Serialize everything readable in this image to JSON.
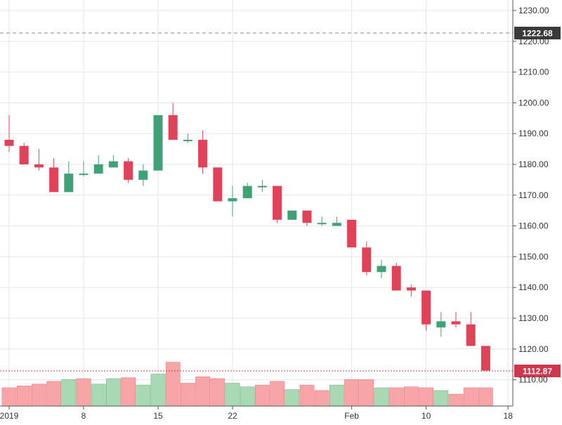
{
  "chart_data": {
    "type": "candlestick",
    "title": "",
    "xlabel": "",
    "ylabel": "",
    "ylim": [
      1105,
      1232
    ],
    "grid": true,
    "x_ticks": [
      {
        "label": "2019",
        "index": 0
      },
      {
        "label": "8",
        "index": 5
      },
      {
        "label": "15",
        "index": 10
      },
      {
        "label": "22",
        "index": 15
      },
      {
        "label": "Feb",
        "index": 23
      },
      {
        "label": "10",
        "index": 28
      },
      {
        "label": "18",
        "index": 33.5
      }
    ],
    "y_ticks": [
      1110,
      1120,
      1130,
      1140,
      1150,
      1160,
      1170,
      1180,
      1190,
      1200,
      1210,
      1220,
      1230
    ],
    "reference_lines": [
      {
        "value": 1222.68,
        "label": "1222.68",
        "style": "dashed",
        "color": "#888888",
        "label_bg": "#3a3a3a"
      },
      {
        "value": 1112.87,
        "label": "1112.87",
        "style": "dotted",
        "color": "#d0364c",
        "label_bg": "#d0364c"
      }
    ],
    "colors": {
      "up": "#3fa277",
      "down": "#e04358",
      "volume_up": "#a8d8b4",
      "volume_down": "#f7a5a6",
      "volume_edge": "#e57f82",
      "volume_up_edge": "#74b98b",
      "grid": "#e1e6ec",
      "axis": "#555555",
      "text": "#333333"
    },
    "candles": [
      {
        "open": 1188,
        "high": 1196,
        "low": 1184,
        "close": 1186
      },
      {
        "open": 1186,
        "high": 1187,
        "low": 1180,
        "close": 1180
      },
      {
        "open": 1180,
        "high": 1185,
        "low": 1178,
        "close": 1179
      },
      {
        "open": 1179,
        "high": 1182,
        "low": 1171,
        "close": 1171
      },
      {
        "open": 1171,
        "high": 1181,
        "low": 1171,
        "close": 1177
      },
      {
        "open": 1177,
        "high": 1181,
        "low": 1176,
        "close": 1177
      },
      {
        "open": 1177,
        "high": 1183,
        "low": 1177,
        "close": 1180
      },
      {
        "open": 1179,
        "high": 1183,
        "low": 1179,
        "close": 1181
      },
      {
        "open": 1181,
        "high": 1182,
        "low": 1174,
        "close": 1175
      },
      {
        "open": 1175,
        "high": 1180,
        "low": 1173,
        "close": 1178
      },
      {
        "open": 1178,
        "high": 1196,
        "low": 1178,
        "close": 1196
      },
      {
        "open": 1196,
        "high": 1200,
        "low": 1188,
        "close": 1188
      },
      {
        "open": 1188,
        "high": 1190,
        "low": 1187,
        "close": 1188
      },
      {
        "open": 1188,
        "high": 1191,
        "low": 1177,
        "close": 1179
      },
      {
        "open": 1179,
        "high": 1179,
        "low": 1168,
        "close": 1168
      },
      {
        "open": 1168,
        "high": 1173,
        "low": 1163,
        "close": 1169
      },
      {
        "open": 1169,
        "high": 1174,
        "low": 1169,
        "close": 1173
      },
      {
        "open": 1173,
        "high": 1175,
        "low": 1171,
        "close": 1173
      },
      {
        "open": 1173,
        "high": 1173,
        "low": 1161,
        "close": 1162
      },
      {
        "open": 1162,
        "high": 1165,
        "low": 1162,
        "close": 1165
      },
      {
        "open": 1165,
        "high": 1165,
        "low": 1160,
        "close": 1161
      },
      {
        "open": 1161,
        "high": 1163,
        "low": 1160,
        "close": 1161
      },
      {
        "open": 1160,
        "high": 1163,
        "low": 1160,
        "close": 1161
      },
      {
        "open": 1162,
        "high": 1162,
        "low": 1153,
        "close": 1153
      },
      {
        "open": 1153,
        "high": 1155,
        "low": 1144,
        "close": 1145
      },
      {
        "open": 1145,
        "high": 1149,
        "low": 1143,
        "close": 1147
      },
      {
        "open": 1147,
        "high": 1148,
        "low": 1139,
        "close": 1139
      },
      {
        "open": 1140,
        "high": 1141,
        "low": 1137,
        "close": 1139
      },
      {
        "open": 1139,
        "high": 1139,
        "low": 1126,
        "close": 1128
      },
      {
        "open": 1127,
        "high": 1132,
        "low": 1124,
        "close": 1129
      },
      {
        "open": 1129,
        "high": 1132,
        "low": 1127,
        "close": 1128
      },
      {
        "open": 1128,
        "high": 1132,
        "low": 1121,
        "close": 1121
      },
      {
        "open": 1121,
        "high": 1121,
        "low": 1113,
        "close": 1113
      }
    ],
    "volume": [
      {
        "value": 1.0,
        "dir": "down"
      },
      {
        "value": 1.1,
        "dir": "down"
      },
      {
        "value": 1.2,
        "dir": "down"
      },
      {
        "value": 1.35,
        "dir": "down"
      },
      {
        "value": 1.45,
        "dir": "up"
      },
      {
        "value": 1.5,
        "dir": "down"
      },
      {
        "value": 1.2,
        "dir": "up"
      },
      {
        "value": 1.5,
        "dir": "up"
      },
      {
        "value": 1.55,
        "dir": "down"
      },
      {
        "value": 1.15,
        "dir": "up"
      },
      {
        "value": 1.75,
        "dir": "up"
      },
      {
        "value": 2.4,
        "dir": "down"
      },
      {
        "value": 1.25,
        "dir": "down"
      },
      {
        "value": 1.6,
        "dir": "down"
      },
      {
        "value": 1.5,
        "dir": "down"
      },
      {
        "value": 1.25,
        "dir": "up"
      },
      {
        "value": 1.05,
        "dir": "up"
      },
      {
        "value": 1.15,
        "dir": "down"
      },
      {
        "value": 1.35,
        "dir": "down"
      },
      {
        "value": 0.9,
        "dir": "up"
      },
      {
        "value": 1.15,
        "dir": "down"
      },
      {
        "value": 0.85,
        "dir": "down"
      },
      {
        "value": 1.15,
        "dir": "up"
      },
      {
        "value": 1.45,
        "dir": "down"
      },
      {
        "value": 1.45,
        "dir": "down"
      },
      {
        "value": 1.0,
        "dir": "up"
      },
      {
        "value": 1.0,
        "dir": "down"
      },
      {
        "value": 1.05,
        "dir": "down"
      },
      {
        "value": 1.0,
        "dir": "down"
      },
      {
        "value": 0.85,
        "dir": "up"
      },
      {
        "value": 0.65,
        "dir": "down"
      },
      {
        "value": 1.0,
        "dir": "down"
      },
      {
        "value": 1.0,
        "dir": "down"
      }
    ]
  }
}
